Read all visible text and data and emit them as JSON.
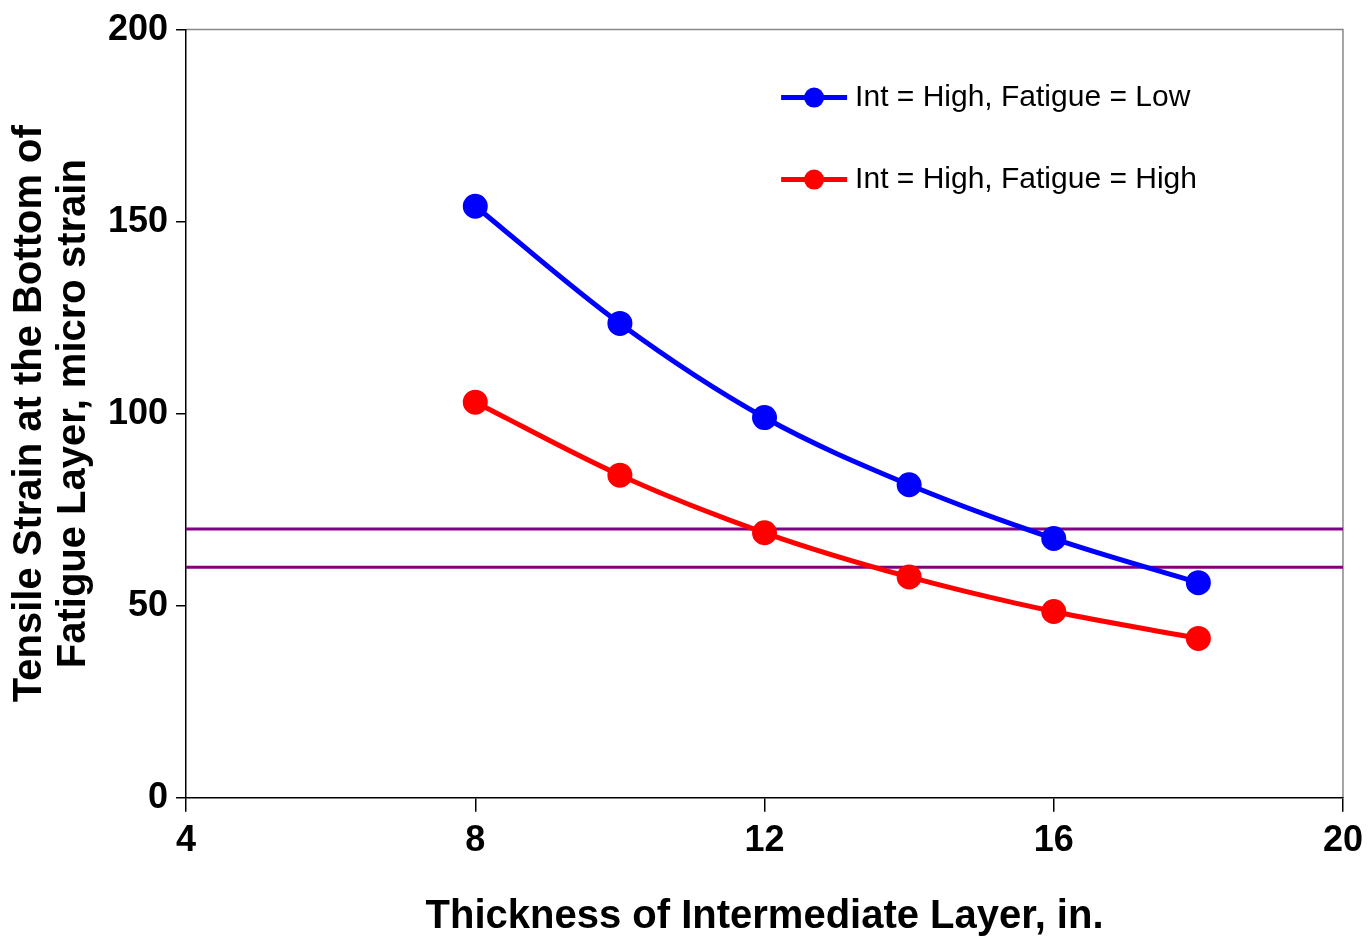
{
  "chart_data": {
    "type": "line",
    "xlabel": "Thickness of Intermediate Layer, in.",
    "ylabel": "Tensile Strain at the Bottom of\nFatigue Layer, micro strain",
    "x": [
      8,
      10,
      12,
      14,
      16,
      18
    ],
    "series": [
      {
        "name": "Int = High, Fatigue = Low",
        "color": "#0000ff",
        "values": [
          154,
          123.5,
          99,
          81.5,
          67.5,
          56
        ]
      },
      {
        "name": "Int = High, Fatigue = High",
        "color": "#ff0000",
        "values": [
          103,
          84,
          69,
          57.5,
          48.5,
          41.5
        ]
      }
    ],
    "ref_lines": [
      {
        "axis": "y",
        "value": 70,
        "color": "#800080"
      },
      {
        "axis": "y",
        "value": 60,
        "color": "#800080"
      }
    ],
    "xlim": [
      4,
      20
    ],
    "xticks": [
      4,
      8,
      12,
      16,
      20
    ],
    "ylim": [
      0,
      200
    ],
    "yticks": [
      0,
      50,
      100,
      150,
      200
    ],
    "grid": false,
    "legend": "top right",
    "marker": "circle",
    "line_style": "solid"
  }
}
